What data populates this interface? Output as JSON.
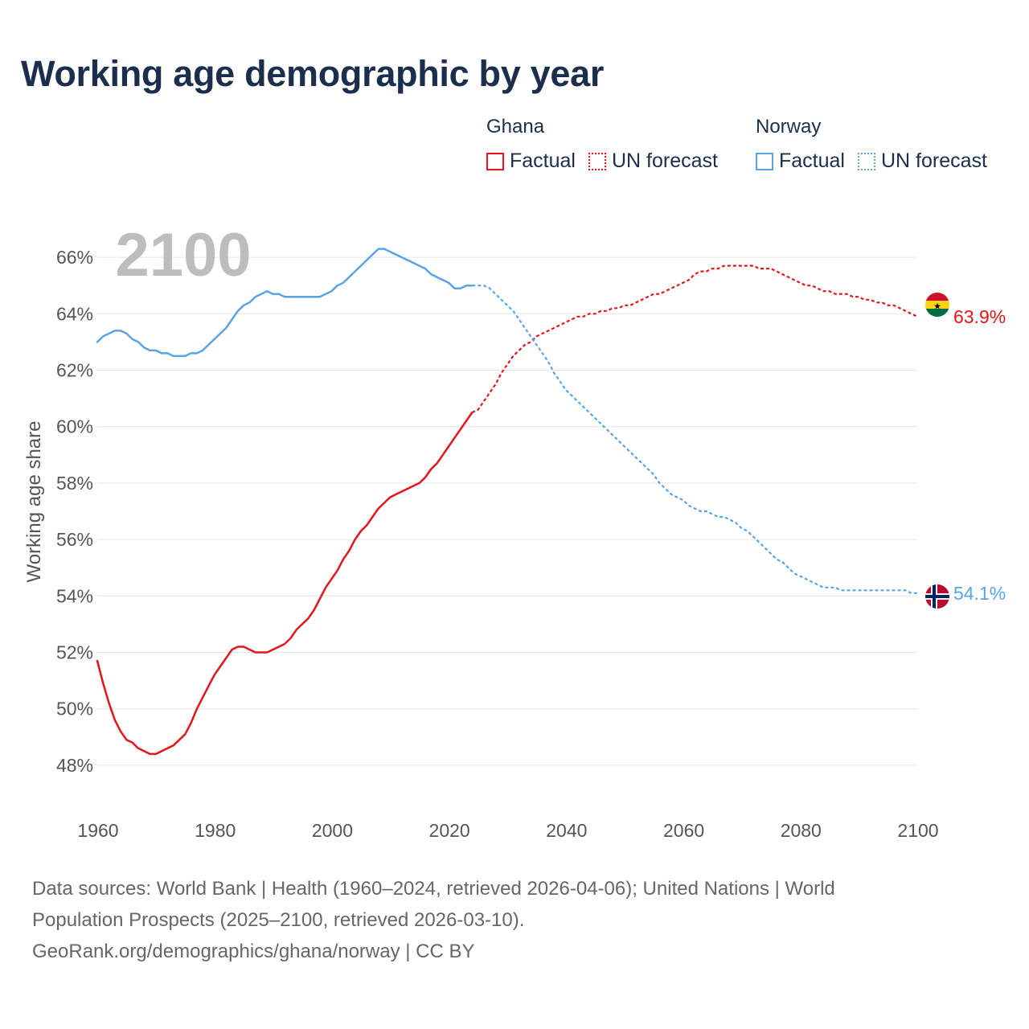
{
  "title": "Working age demographic by year",
  "year_watermark": "2100",
  "legend": [
    {
      "country": "Ghana",
      "factual_label": "Factual",
      "forecast_label": "UN forecast",
      "color": "#e3151a"
    },
    {
      "country": "Norway",
      "factual_label": "Factual",
      "forecast_label": "UN forecast",
      "color": "#5aa4e6"
    }
  ],
  "footer": {
    "line1": "Data sources: World Bank | Health (1960–2024, retrieved 2026-04-06); United Nations | World",
    "line2": "Population Prospects (2025–2100, retrieved 2026-03-10).",
    "line3": "GeoRank.org/demographics/ghana/norway | CC BY"
  },
  "chart_data": {
    "type": "line",
    "title": "Working age demographic by year",
    "xlabel": "",
    "ylabel": "Working age share",
    "xlim": [
      1960,
      2100
    ],
    "ylim": [
      47,
      67
    ],
    "x_ticks": [
      "1960",
      "1980",
      "2000",
      "2020",
      "2040",
      "2060",
      "2080",
      "2100"
    ],
    "y_ticks": [
      "48%",
      "50%",
      "52%",
      "54%",
      "56%",
      "58%",
      "60%",
      "62%",
      "64%",
      "66%"
    ],
    "grid": true,
    "series": [
      {
        "name": "Ghana",
        "color": "#e3151a",
        "end_label": "63.9%",
        "factual": [
          [
            1960,
            51.7
          ],
          [
            1961,
            50.9
          ],
          [
            1962,
            50.2
          ],
          [
            1963,
            49.6
          ],
          [
            1964,
            49.2
          ],
          [
            1965,
            48.9
          ],
          [
            1966,
            48.8
          ],
          [
            1967,
            48.6
          ],
          [
            1968,
            48.5
          ],
          [
            1969,
            48.4
          ],
          [
            1970,
            48.4
          ],
          [
            1971,
            48.5
          ],
          [
            1972,
            48.6
          ],
          [
            1973,
            48.7
          ],
          [
            1974,
            48.9
          ],
          [
            1975,
            49.1
          ],
          [
            1976,
            49.5
          ],
          [
            1977,
            50.0
          ],
          [
            1978,
            50.4
          ],
          [
            1979,
            50.8
          ],
          [
            1980,
            51.2
          ],
          [
            1981,
            51.5
          ],
          [
            1982,
            51.8
          ],
          [
            1983,
            52.1
          ],
          [
            1984,
            52.2
          ],
          [
            1985,
            52.2
          ],
          [
            1986,
            52.1
          ],
          [
            1987,
            52.0
          ],
          [
            1988,
            52.0
          ],
          [
            1989,
            52.0
          ],
          [
            1990,
            52.1
          ],
          [
            1991,
            52.2
          ],
          [
            1992,
            52.3
          ],
          [
            1993,
            52.5
          ],
          [
            1994,
            52.8
          ],
          [
            1995,
            53.0
          ],
          [
            1996,
            53.2
          ],
          [
            1997,
            53.5
          ],
          [
            1998,
            53.9
          ],
          [
            1999,
            54.3
          ],
          [
            2000,
            54.6
          ],
          [
            2001,
            54.9
          ],
          [
            2002,
            55.3
          ],
          [
            2003,
            55.6
          ],
          [
            2004,
            56.0
          ],
          [
            2005,
            56.3
          ],
          [
            2006,
            56.5
          ],
          [
            2007,
            56.8
          ],
          [
            2008,
            57.1
          ],
          [
            2009,
            57.3
          ],
          [
            2010,
            57.5
          ],
          [
            2011,
            57.6
          ],
          [
            2012,
            57.7
          ],
          [
            2013,
            57.8
          ],
          [
            2014,
            57.9
          ],
          [
            2015,
            58.0
          ],
          [
            2016,
            58.2
          ],
          [
            2017,
            58.5
          ],
          [
            2018,
            58.7
          ],
          [
            2019,
            59.0
          ],
          [
            2020,
            59.3
          ],
          [
            2021,
            59.6
          ],
          [
            2022,
            59.9
          ],
          [
            2023,
            60.2
          ],
          [
            2024,
            60.5
          ]
        ],
        "forecast": [
          [
            2024,
            60.5
          ],
          [
            2025,
            60.6
          ],
          [
            2026,
            60.9
          ],
          [
            2027,
            61.2
          ],
          [
            2028,
            61.5
          ],
          [
            2029,
            61.9
          ],
          [
            2030,
            62.2
          ],
          [
            2031,
            62.5
          ],
          [
            2032,
            62.7
          ],
          [
            2033,
            62.9
          ],
          [
            2034,
            63.0
          ],
          [
            2035,
            63.2
          ],
          [
            2036,
            63.3
          ],
          [
            2037,
            63.4
          ],
          [
            2038,
            63.5
          ],
          [
            2039,
            63.6
          ],
          [
            2040,
            63.7
          ],
          [
            2041,
            63.8
          ],
          [
            2042,
            63.9
          ],
          [
            2043,
            63.9
          ],
          [
            2044,
            64.0
          ],
          [
            2045,
            64.0
          ],
          [
            2046,
            64.1
          ],
          [
            2047,
            64.1
          ],
          [
            2048,
            64.2
          ],
          [
            2049,
            64.2
          ],
          [
            2050,
            64.3
          ],
          [
            2051,
            64.3
          ],
          [
            2052,
            64.4
          ],
          [
            2053,
            64.5
          ],
          [
            2054,
            64.6
          ],
          [
            2055,
            64.7
          ],
          [
            2056,
            64.7
          ],
          [
            2057,
            64.8
          ],
          [
            2058,
            64.9
          ],
          [
            2059,
            65.0
          ],
          [
            2060,
            65.1
          ],
          [
            2061,
            65.2
          ],
          [
            2062,
            65.4
          ],
          [
            2063,
            65.5
          ],
          [
            2064,
            65.5
          ],
          [
            2065,
            65.6
          ],
          [
            2066,
            65.6
          ],
          [
            2067,
            65.7
          ],
          [
            2068,
            65.7
          ],
          [
            2069,
            65.7
          ],
          [
            2070,
            65.7
          ],
          [
            2071,
            65.7
          ],
          [
            2072,
            65.7
          ],
          [
            2073,
            65.6
          ],
          [
            2074,
            65.6
          ],
          [
            2075,
            65.6
          ],
          [
            2076,
            65.5
          ],
          [
            2077,
            65.4
          ],
          [
            2078,
            65.3
          ],
          [
            2079,
            65.2
          ],
          [
            2080,
            65.1
          ],
          [
            2081,
            65.0
          ],
          [
            2082,
            65.0
          ],
          [
            2083,
            64.9
          ],
          [
            2084,
            64.8
          ],
          [
            2085,
            64.8
          ],
          [
            2086,
            64.7
          ],
          [
            2087,
            64.7
          ],
          [
            2088,
            64.7
          ],
          [
            2089,
            64.6
          ],
          [
            2090,
            64.6
          ],
          [
            2091,
            64.5
          ],
          [
            2092,
            64.5
          ],
          [
            2093,
            64.4
          ],
          [
            2094,
            64.4
          ],
          [
            2095,
            64.3
          ],
          [
            2096,
            64.3
          ],
          [
            2097,
            64.2
          ],
          [
            2098,
            64.1
          ],
          [
            2099,
            64.0
          ],
          [
            2100,
            63.9
          ]
        ]
      },
      {
        "name": "Norway",
        "color": "#5aa4e6",
        "end_label": "54.1%",
        "factual": [
          [
            1960,
            63.0
          ],
          [
            1961,
            63.2
          ],
          [
            1962,
            63.3
          ],
          [
            1963,
            63.4
          ],
          [
            1964,
            63.4
          ],
          [
            1965,
            63.3
          ],
          [
            1966,
            63.1
          ],
          [
            1967,
            63.0
          ],
          [
            1968,
            62.8
          ],
          [
            1969,
            62.7
          ],
          [
            1970,
            62.7
          ],
          [
            1971,
            62.6
          ],
          [
            1972,
            62.6
          ],
          [
            1973,
            62.5
          ],
          [
            1974,
            62.5
          ],
          [
            1975,
            62.5
          ],
          [
            1976,
            62.6
          ],
          [
            1977,
            62.6
          ],
          [
            1978,
            62.7
          ],
          [
            1979,
            62.9
          ],
          [
            1980,
            63.1
          ],
          [
            1981,
            63.3
          ],
          [
            1982,
            63.5
          ],
          [
            1983,
            63.8
          ],
          [
            1984,
            64.1
          ],
          [
            1985,
            64.3
          ],
          [
            1986,
            64.4
          ],
          [
            1987,
            64.6
          ],
          [
            1988,
            64.7
          ],
          [
            1989,
            64.8
          ],
          [
            1990,
            64.7
          ],
          [
            1991,
            64.7
          ],
          [
            1992,
            64.6
          ],
          [
            1993,
            64.6
          ],
          [
            1994,
            64.6
          ],
          [
            1995,
            64.6
          ],
          [
            1996,
            64.6
          ],
          [
            1997,
            64.6
          ],
          [
            1998,
            64.6
          ],
          [
            1999,
            64.7
          ],
          [
            2000,
            64.8
          ],
          [
            2001,
            65.0
          ],
          [
            2002,
            65.1
          ],
          [
            2003,
            65.3
          ],
          [
            2004,
            65.5
          ],
          [
            2005,
            65.7
          ],
          [
            2006,
            65.9
          ],
          [
            2007,
            66.1
          ],
          [
            2008,
            66.3
          ],
          [
            2009,
            66.3
          ],
          [
            2010,
            66.2
          ],
          [
            2011,
            66.1
          ],
          [
            2012,
            66.0
          ],
          [
            2013,
            65.9
          ],
          [
            2014,
            65.8
          ],
          [
            2015,
            65.7
          ],
          [
            2016,
            65.6
          ],
          [
            2017,
            65.4
          ],
          [
            2018,
            65.3
          ],
          [
            2019,
            65.2
          ],
          [
            2020,
            65.1
          ],
          [
            2021,
            64.9
          ],
          [
            2022,
            64.9
          ],
          [
            2023,
            65.0
          ],
          [
            2024,
            65.0
          ]
        ],
        "forecast": [
          [
            2024,
            65.0
          ],
          [
            2025,
            65.0
          ],
          [
            2026,
            65.0
          ],
          [
            2027,
            64.9
          ],
          [
            2028,
            64.7
          ],
          [
            2029,
            64.5
          ],
          [
            2030,
            64.3
          ],
          [
            2031,
            64.1
          ],
          [
            2032,
            63.8
          ],
          [
            2033,
            63.5
          ],
          [
            2034,
            63.2
          ],
          [
            2035,
            62.9
          ],
          [
            2036,
            62.6
          ],
          [
            2037,
            62.3
          ],
          [
            2038,
            61.9
          ],
          [
            2039,
            61.6
          ],
          [
            2040,
            61.3
          ],
          [
            2041,
            61.1
          ],
          [
            2042,
            60.9
          ],
          [
            2043,
            60.7
          ],
          [
            2044,
            60.5
          ],
          [
            2045,
            60.3
          ],
          [
            2046,
            60.1
          ],
          [
            2047,
            59.9
          ],
          [
            2048,
            59.7
          ],
          [
            2049,
            59.5
          ],
          [
            2050,
            59.3
          ],
          [
            2051,
            59.1
          ],
          [
            2052,
            58.9
          ],
          [
            2053,
            58.7
          ],
          [
            2054,
            58.5
          ],
          [
            2055,
            58.3
          ],
          [
            2056,
            58.0
          ],
          [
            2057,
            57.8
          ],
          [
            2058,
            57.6
          ],
          [
            2059,
            57.5
          ],
          [
            2060,
            57.4
          ],
          [
            2061,
            57.2
          ],
          [
            2062,
            57.1
          ],
          [
            2063,
            57.0
          ],
          [
            2064,
            57.0
          ],
          [
            2065,
            56.9
          ],
          [
            2066,
            56.8
          ],
          [
            2067,
            56.8
          ],
          [
            2068,
            56.7
          ],
          [
            2069,
            56.6
          ],
          [
            2070,
            56.4
          ],
          [
            2071,
            56.3
          ],
          [
            2072,
            56.1
          ],
          [
            2073,
            55.9
          ],
          [
            2074,
            55.7
          ],
          [
            2075,
            55.5
          ],
          [
            2076,
            55.3
          ],
          [
            2077,
            55.2
          ],
          [
            2078,
            55.0
          ],
          [
            2079,
            54.8
          ],
          [
            2080,
            54.7
          ],
          [
            2081,
            54.6
          ],
          [
            2082,
            54.5
          ],
          [
            2083,
            54.4
          ],
          [
            2084,
            54.3
          ],
          [
            2085,
            54.3
          ],
          [
            2086,
            54.3
          ],
          [
            2087,
            54.2
          ],
          [
            2088,
            54.2
          ],
          [
            2089,
            54.2
          ],
          [
            2090,
            54.2
          ],
          [
            2091,
            54.2
          ],
          [
            2092,
            54.2
          ],
          [
            2093,
            54.2
          ],
          [
            2094,
            54.2
          ],
          [
            2095,
            54.2
          ],
          [
            2096,
            54.2
          ],
          [
            2097,
            54.2
          ],
          [
            2098,
            54.2
          ],
          [
            2099,
            54.1
          ],
          [
            2100,
            54.1
          ]
        ]
      }
    ]
  }
}
